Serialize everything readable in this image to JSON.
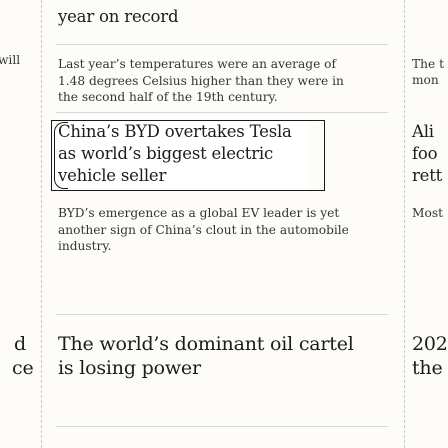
{
  "left_column": {
    "top_fragment": "will",
    "bottom_fragment_1": "d",
    "bottom_fragment_2": "ce"
  },
  "main_column": {
    "articles": [
      {
        "headline": "year on record",
        "summary": ""
      },
      {
        "headline": "",
        "summary": "Last year’s temperatures were an average of 1.48 degrees Celsius higher than they were in the second half of the 19th century."
      },
      {
        "headline": "China’s BYD overtakes Tesla as world’s biggest electric vehicle seller",
        "summary": "BYD’s emergence as a global EV leader is yet another sign of China’s clout in the automobile industry."
      },
      {
        "headline": "The world’s dominant oil cartel is losing power",
        "summary": ""
      }
    ]
  },
  "right_column": {
    "line_1": "The t",
    "line_2": "mon",
    "headline_1": "Ali",
    "headline_2": "foo",
    "headline_3": "rett",
    "summary_1": "Most",
    "headline_4": "202",
    "headline_5": "the"
  }
}
